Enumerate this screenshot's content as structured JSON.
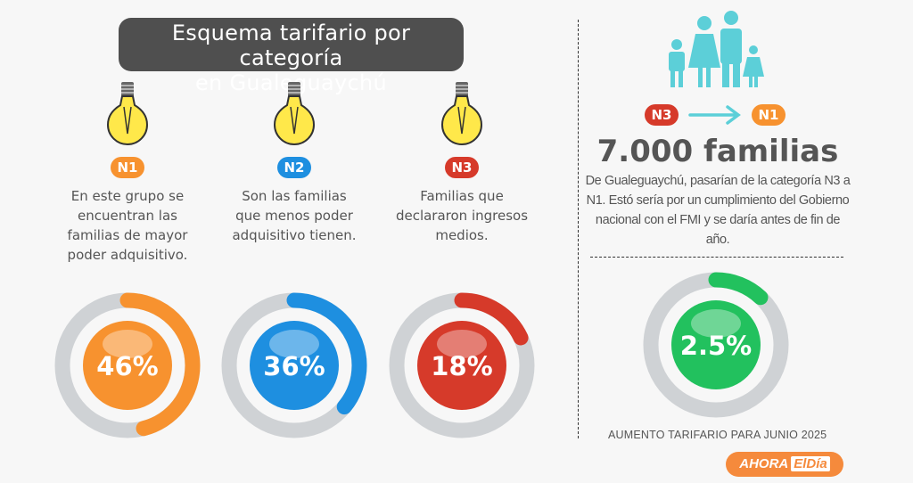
{
  "title": "Esquema tarifario por categoría en Gualeguaychú",
  "title_lines": [
    "Esquema tarifario por categoría",
    "en Gualeguaychú"
  ],
  "categories": [
    {
      "badge": "N1",
      "color": "#f7922f",
      "text": "En este grupo se encuentran las familias de mayor poder adquisitivo.",
      "percent_label": "46%"
    },
    {
      "badge": "N2",
      "color": "#1e8fe0",
      "text": "Son las familias que menos poder adquisitivo tienen.",
      "percent_label": "36%"
    },
    {
      "badge": "N3",
      "color": "#d63a2a",
      "text": "Familias que declararon ingresos medios.",
      "percent_label": "18%"
    }
  ],
  "icons": {
    "bulb": "lightbulb-icon",
    "family": "family-icon",
    "arrow": "arrow-right-icon"
  },
  "transition": {
    "from": "N3",
    "to": "N1",
    "from_color": "#d63a2a",
    "to_color": "#f7922f",
    "arrow_color": "#5ccfd8"
  },
  "headline": "7.000 familias",
  "description": "De Gualeguaychú, pasarían de la categoría N3 a N1. Estó sería por un cumplimiento del Gobierno nacional con el FMI y se daría antes de fin de año.",
  "increase": {
    "percent_label": "2.5%",
    "color": "#22c15e",
    "caption": "AUMENTO TARIFARIO PARA JUNIO 2025"
  },
  "logo": {
    "text": "AHORA ElDía",
    "part1": "AHORA",
    "part2": "ElDía"
  },
  "chart_data": {
    "type": "donut",
    "ring_color": "#cfd2d5",
    "items": [
      {
        "label": "N1",
        "value": 46,
        "color": "#f7922f"
      },
      {
        "label": "N2",
        "value": 36,
        "color": "#1e8fe0"
      },
      {
        "label": "N3",
        "value": 18,
        "color": "#d63a2a"
      },
      {
        "label": "Aumento tarifario",
        "value": 2.5,
        "color": "#22c15e"
      }
    ]
  }
}
